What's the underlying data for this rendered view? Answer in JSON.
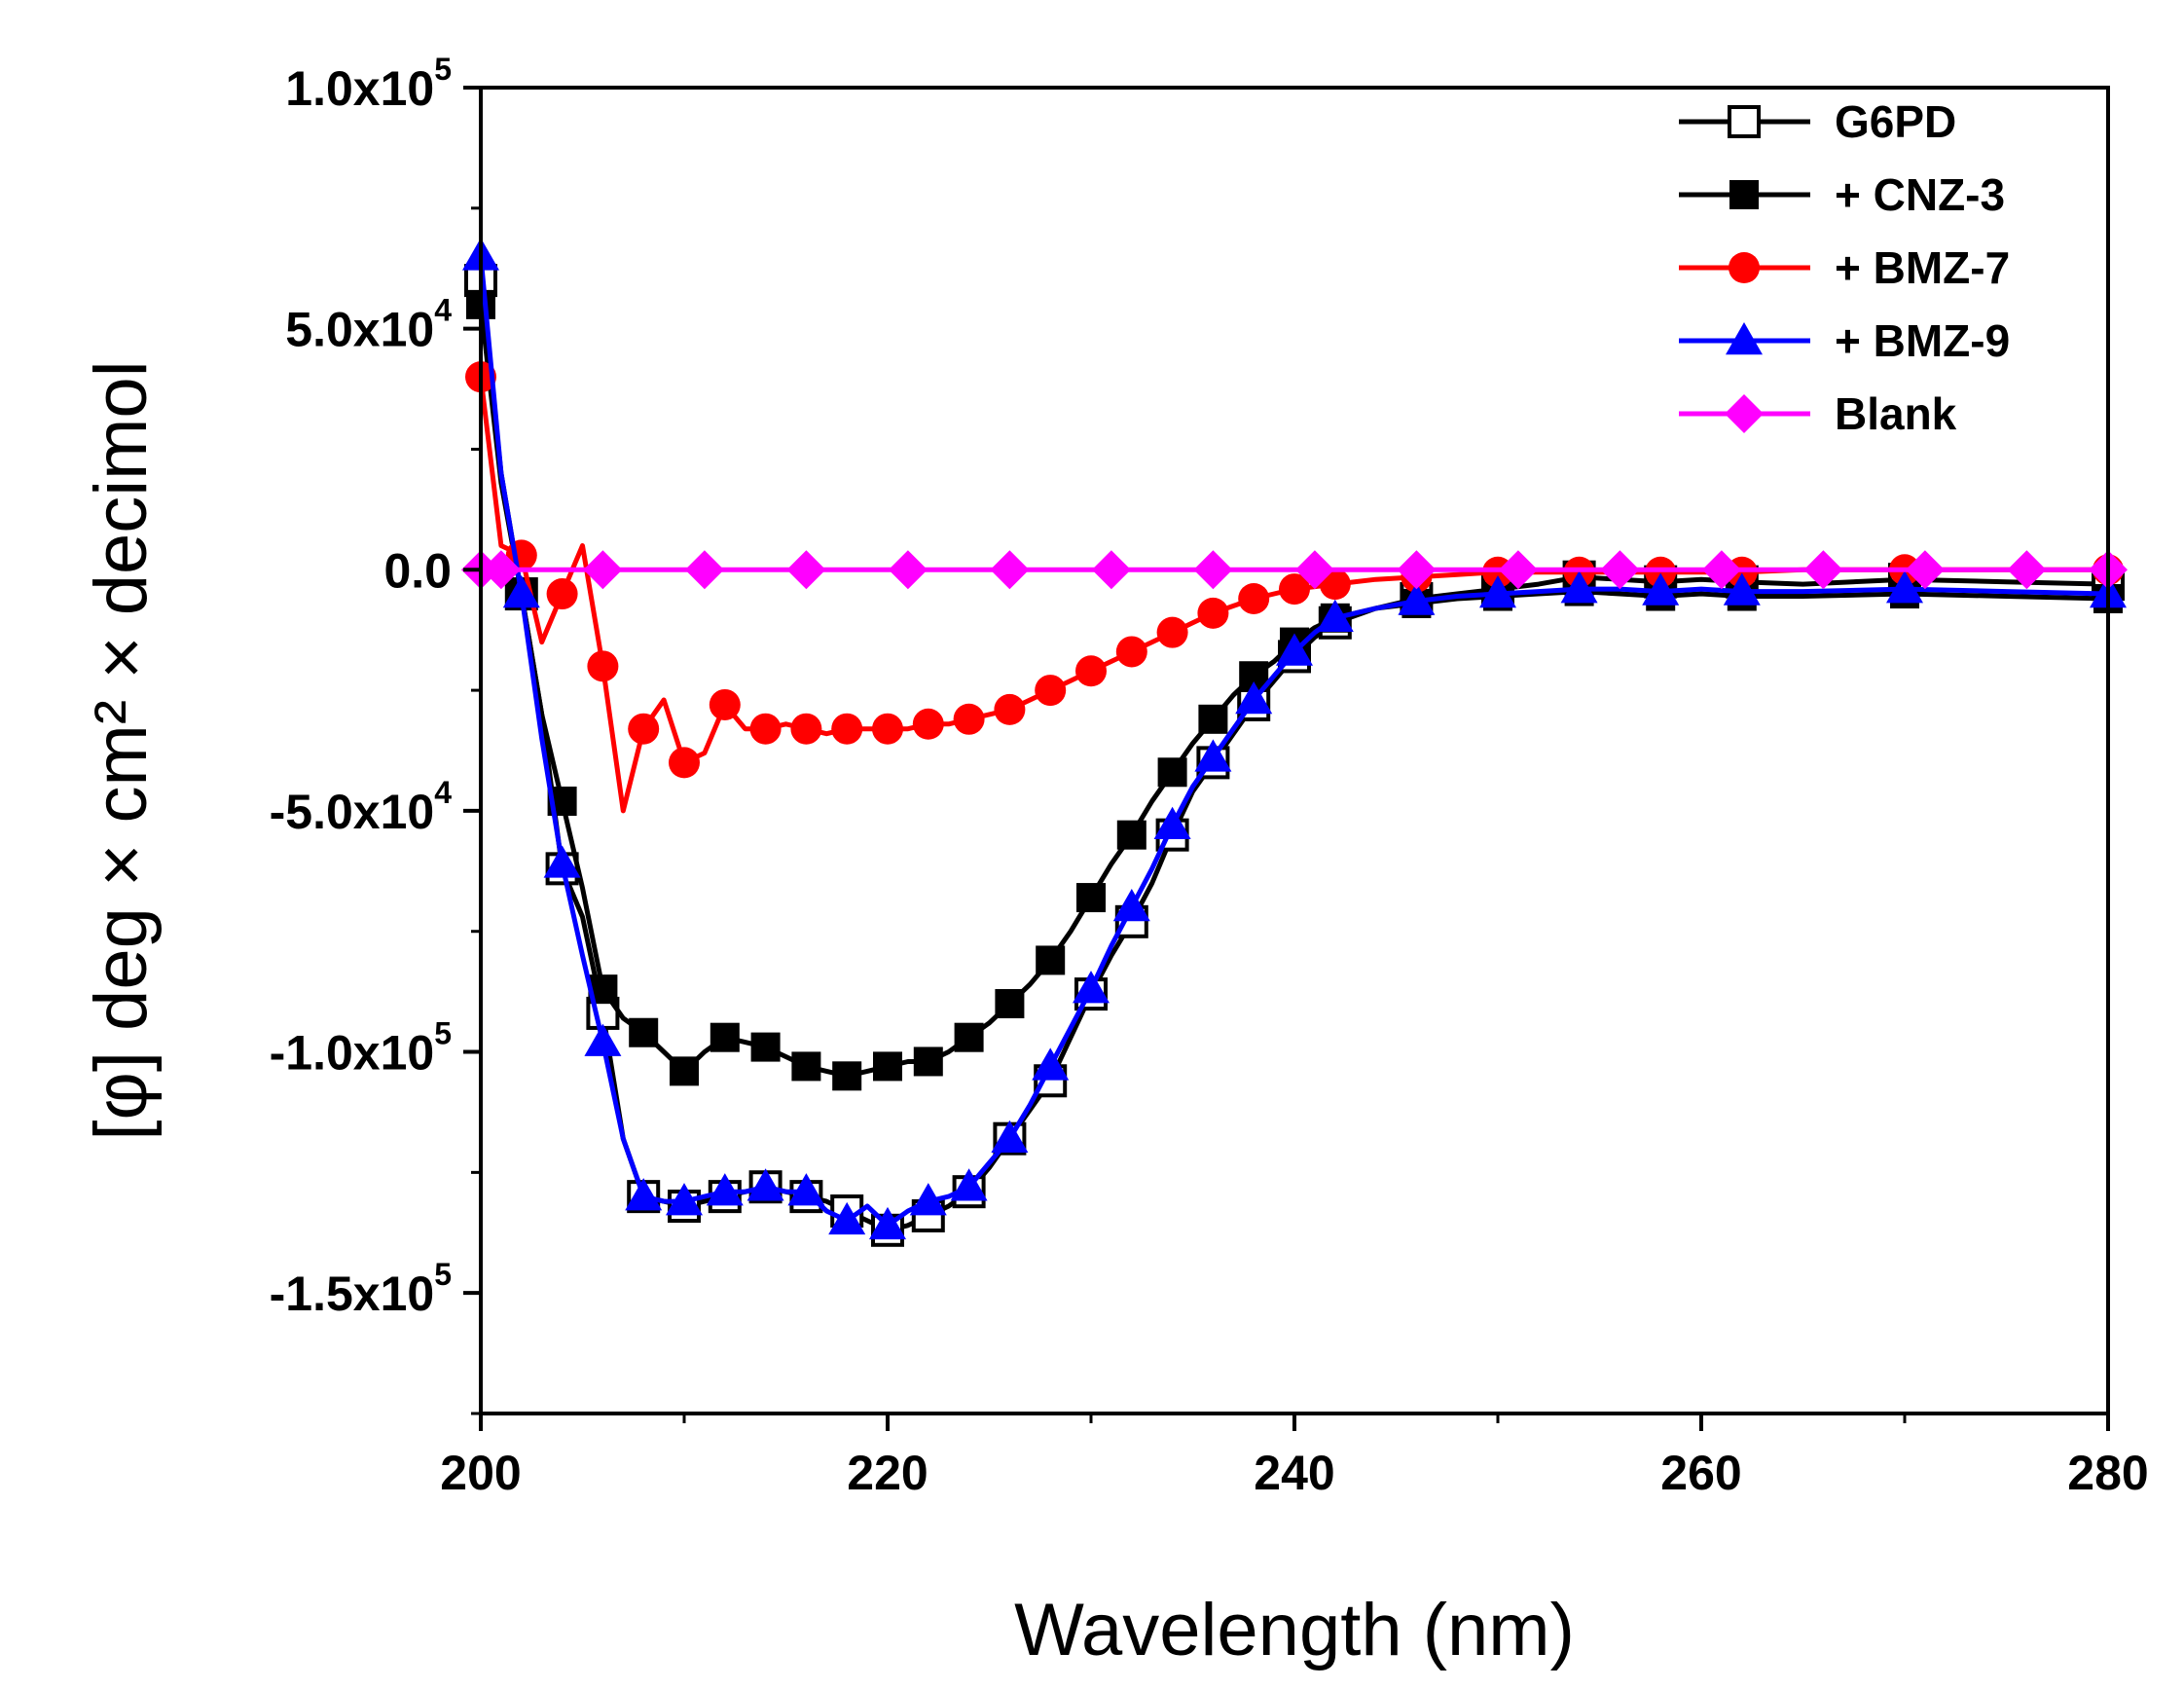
{
  "chart_data": {
    "type": "line",
    "title": "",
    "xlabel": "Wavelength (nm)",
    "ylabel": "[φ] deg × cm² × decimol",
    "xlim": [
      200,
      280
    ],
    "ylim": [
      -175000,
      100000
    ],
    "x_ticks": [
      {
        "value": 200,
        "label": "200"
      },
      {
        "value": 220,
        "label": "220"
      },
      {
        "value": 240,
        "label": "240"
      },
      {
        "value": 260,
        "label": "260"
      },
      {
        "value": 280,
        "label": "280"
      }
    ],
    "y_ticks": [
      {
        "value": 100000,
        "mantissa": "1.0x10",
        "exp": "5"
      },
      {
        "value": 50000,
        "mantissa": "5.0x10",
        "exp": "4"
      },
      {
        "value": 0,
        "mantissa": "0.0",
        "exp": ""
      },
      {
        "value": -50000,
        "mantissa": "-5.0x10",
        "exp": "4"
      },
      {
        "value": -100000,
        "mantissa": "-1.0x10",
        "exp": "5"
      },
      {
        "value": -150000,
        "mantissa": "-1.5x10",
        "exp": "5"
      }
    ],
    "legend_position": "top-right",
    "series": [
      {
        "name": "G6PD",
        "color": "#000000",
        "marker": "square-open",
        "x": [
          200,
          201,
          202,
          203,
          204,
          205,
          206,
          207,
          208,
          209,
          210,
          211,
          212,
          213,
          214,
          215,
          216,
          217,
          218,
          219,
          220,
          221,
          222,
          223,
          224,
          225,
          226,
          227,
          228,
          229,
          230,
          231,
          232,
          233,
          234,
          235,
          236,
          237,
          238,
          239,
          240,
          241,
          242,
          244,
          246,
          248,
          250,
          252,
          254,
          256,
          258,
          260,
          262,
          265,
          270,
          275,
          280
        ],
        "values": [
          60000,
          20000,
          -5000,
          -30000,
          -62000,
          -72000,
          -92000,
          -118000,
          -130000,
          -131000,
          -132000,
          -131000,
          -130000,
          -129000,
          -128000,
          -129000,
          -130000,
          -131000,
          -133000,
          -135000,
          -137000,
          -136000,
          -134000,
          -132000,
          -129000,
          -124000,
          -118000,
          -112000,
          -106000,
          -97000,
          -88000,
          -80000,
          -73000,
          -65000,
          -55000,
          -46000,
          -40000,
          -34000,
          -28000,
          -23000,
          -18000,
          -14000,
          -11000,
          -8000,
          -6000,
          -5000,
          -4000,
          -3000,
          -1500,
          -2000,
          -2500,
          -2000,
          -2500,
          -3000,
          -2000,
          -2500,
          -3000
        ]
      },
      {
        "name": "+ CNZ-3",
        "color": "#000000",
        "marker": "square-filled",
        "x": [
          200,
          201,
          202,
          203,
          204,
          205,
          206,
          207,
          208,
          209,
          210,
          211,
          212,
          213,
          214,
          215,
          216,
          217,
          218,
          219,
          220,
          221,
          222,
          223,
          224,
          225,
          226,
          227,
          228,
          229,
          230,
          231,
          232,
          233,
          234,
          235,
          236,
          237,
          238,
          239,
          240,
          241,
          242,
          244,
          246,
          248,
          250,
          252,
          254,
          256,
          258,
          260,
          262,
          265,
          270,
          275,
          280
        ],
        "values": [
          55000,
          18000,
          -5000,
          -30000,
          -48000,
          -66000,
          -87000,
          -93000,
          -96000,
          -100000,
          -104000,
          -100000,
          -97000,
          -98000,
          -99000,
          -101000,
          -103000,
          -104000,
          -105000,
          -104000,
          -103000,
          -102000,
          -102000,
          -100000,
          -97000,
          -94000,
          -90000,
          -86000,
          -81000,
          -75000,
          -68000,
          -61000,
          -55000,
          -48000,
          -42000,
          -36000,
          -31000,
          -26000,
          -22000,
          -19000,
          -15000,
          -12000,
          -10000,
          -8000,
          -7000,
          -6000,
          -5500,
          -5000,
          -4500,
          -5000,
          -5500,
          -5000,
          -5500,
          -5500,
          -5000,
          -5500,
          -6000
        ]
      },
      {
        "name": "+ BMZ-7",
        "color": "#ff0000",
        "marker": "circle-filled",
        "x": [
          200,
          201,
          202,
          203,
          204,
          205,
          206,
          207,
          208,
          209,
          210,
          211,
          212,
          213,
          214,
          215,
          216,
          217,
          218,
          219,
          220,
          221,
          222,
          223,
          224,
          225,
          226,
          227,
          228,
          229,
          230,
          231,
          232,
          233,
          234,
          235,
          236,
          237,
          238,
          239,
          240,
          241,
          242,
          244,
          246,
          248,
          250,
          252,
          254,
          256,
          258,
          260,
          262,
          265,
          270,
          275,
          280
        ],
        "values": [
          40000,
          5000,
          3000,
          -15000,
          -5000,
          5000,
          -20000,
          -50000,
          -33000,
          -27000,
          -40000,
          -38000,
          -28000,
          -33000,
          -33000,
          -32000,
          -33000,
          -34000,
          -33000,
          -33000,
          -33000,
          -33000,
          -32000,
          -32000,
          -31000,
          -30000,
          -29000,
          -27000,
          -25000,
          -23000,
          -21000,
          -19000,
          -17000,
          -15000,
          -13000,
          -11000,
          -9000,
          -7500,
          -6000,
          -5000,
          -4000,
          -3500,
          -3000,
          -2000,
          -1500,
          -1000,
          -500,
          -500,
          -500,
          -500,
          -500,
          -500,
          -500,
          0,
          0,
          0,
          0
        ]
      },
      {
        "name": "+ BMZ-9",
        "color": "#0000ff",
        "marker": "triangle-filled",
        "x": [
          200,
          201,
          202,
          203,
          204,
          205,
          206,
          207,
          208,
          209,
          210,
          211,
          212,
          213,
          214,
          215,
          216,
          217,
          218,
          219,
          220,
          221,
          222,
          223,
          224,
          225,
          226,
          227,
          228,
          229,
          230,
          231,
          232,
          233,
          234,
          235,
          236,
          237,
          238,
          239,
          240,
          241,
          242,
          244,
          246,
          248,
          250,
          252,
          254,
          256,
          258,
          260,
          262,
          265,
          270,
          275,
          280
        ],
        "values": [
          65000,
          20000,
          -5000,
          -35000,
          -61000,
          -80000,
          -98000,
          -118000,
          -130000,
          -131000,
          -131000,
          -130000,
          -129000,
          -129000,
          -128000,
          -129000,
          -129000,
          -133000,
          -135000,
          -132000,
          -136000,
          -133000,
          -131000,
          -130000,
          -128000,
          -123000,
          -118000,
          -111000,
          -103000,
          -95000,
          -87000,
          -78000,
          -70000,
          -62000,
          -53000,
          -45000,
          -39000,
          -33000,
          -27000,
          -22000,
          -17000,
          -13000,
          -10000,
          -8000,
          -6500,
          -5500,
          -5000,
          -4500,
          -4000,
          -4000,
          -4500,
          -4000,
          -4500,
          -4500,
          -4000,
          -4500,
          -5000
        ]
      },
      {
        "name": "Blank",
        "color": "#ff00ff",
        "marker": "diamond-filled",
        "x": [
          200,
          201,
          206,
          211,
          216,
          221,
          226,
          231,
          236,
          241,
          246,
          251,
          256,
          261,
          266,
          271,
          276,
          280
        ],
        "values": [
          0,
          0,
          0,
          0,
          0,
          0,
          0,
          0,
          0,
          0,
          0,
          0,
          0,
          0,
          0,
          0,
          0,
          0
        ]
      }
    ]
  }
}
